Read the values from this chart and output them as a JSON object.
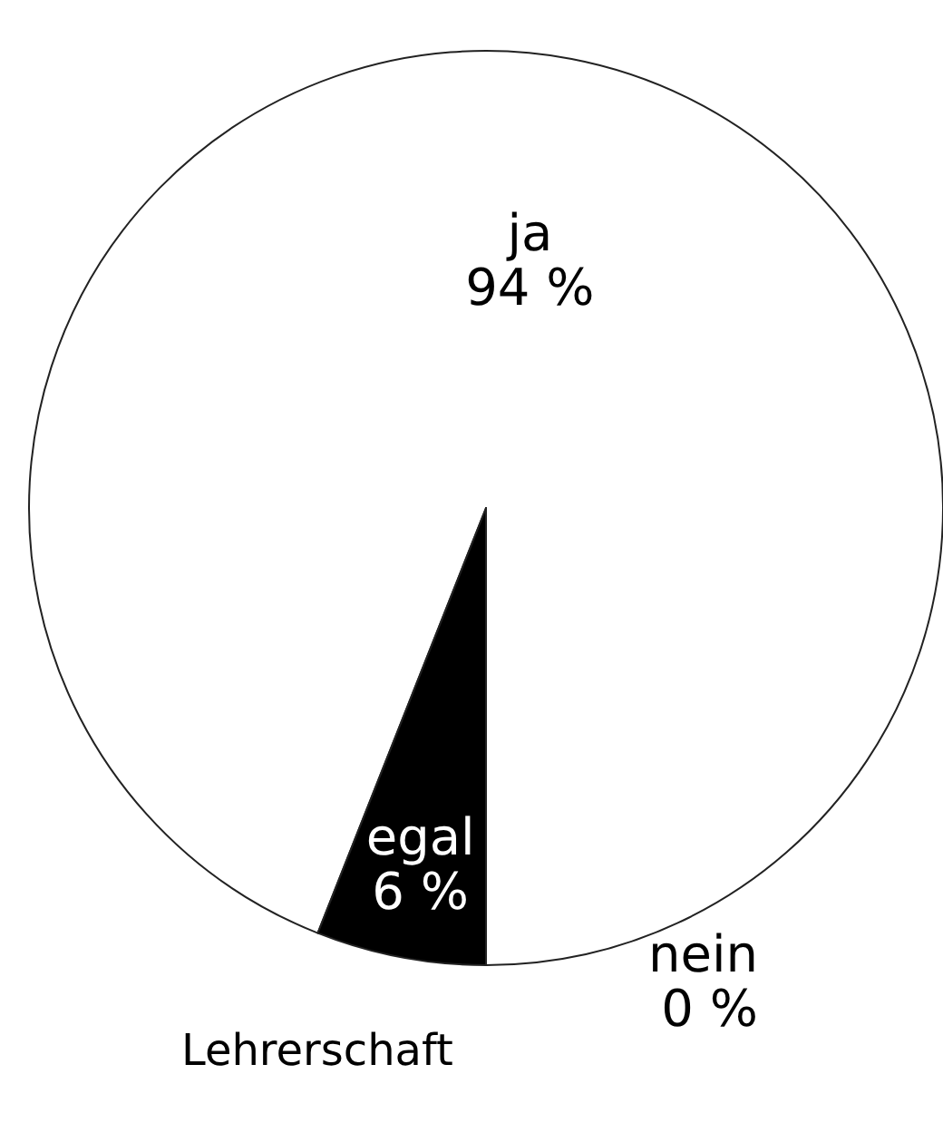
{
  "chart_data": {
    "type": "pie",
    "title": "Lehrerschaft",
    "categories": [
      "ja",
      "egal",
      "nein"
    ],
    "values": [
      94,
      6,
      0
    ],
    "colors": [
      "#ffffff",
      "#000000",
      "#ffffff"
    ],
    "value_labels": [
      "94 %",
      "6 %",
      "0 %"
    ],
    "legend": false
  }
}
